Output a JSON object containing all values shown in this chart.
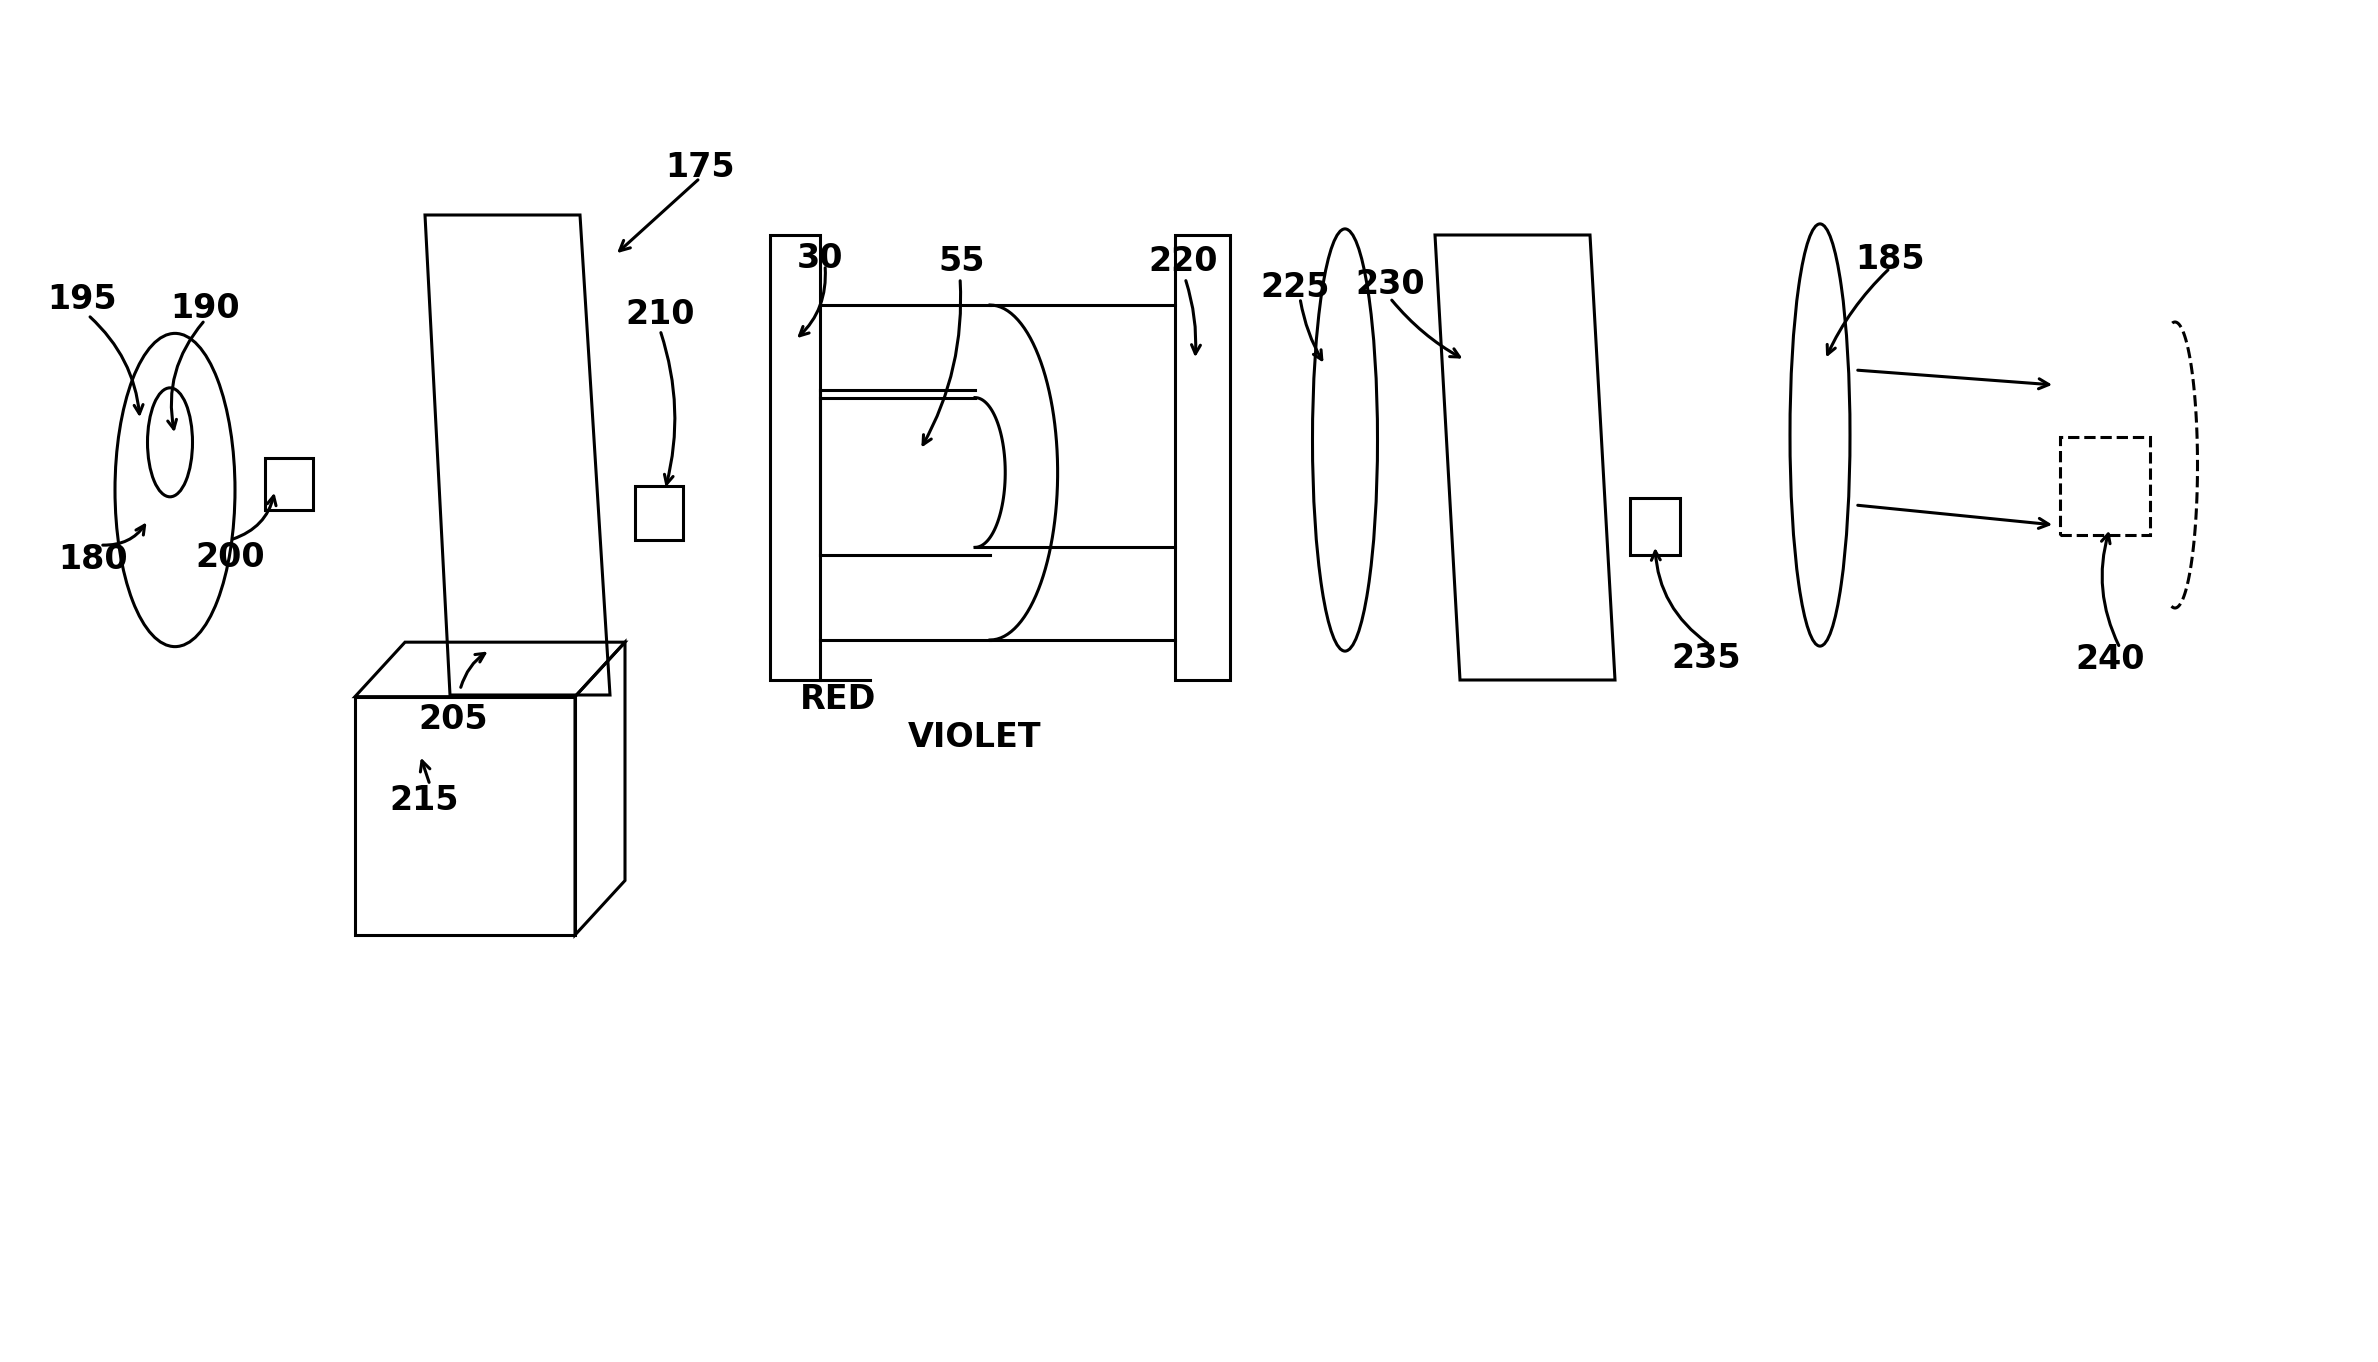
{
  "bg_color": "#ffffff",
  "lc": "#000000",
  "lw": 2.2,
  "figsize": [
    23.78,
    13.62
  ],
  "dpi": 100,
  "xlim": [
    0,
    2378
  ],
  "ylim": [
    0,
    1000
  ]
}
